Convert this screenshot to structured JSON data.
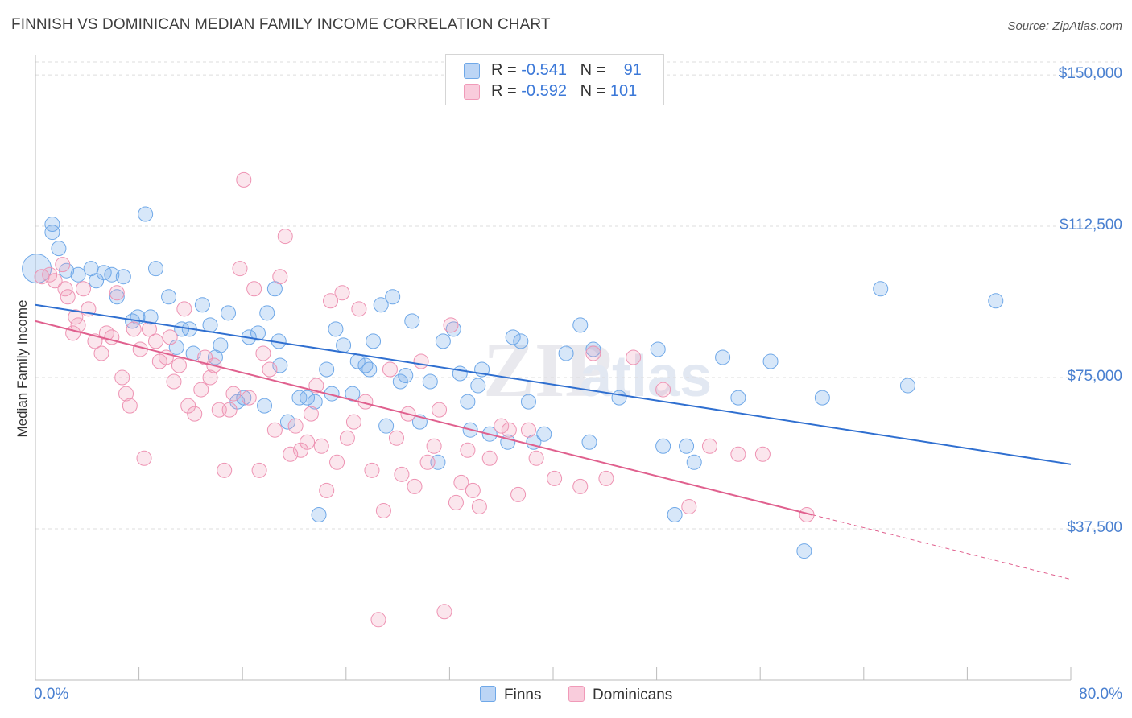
{
  "title": "FINNISH VS DOMINICAN MEDIAN FAMILY INCOME CORRELATION CHART",
  "source": "Source: ZipAtlas.com",
  "watermark": "ZIPatlas",
  "colors": {
    "finns": "#6fa8e8",
    "dominicans": "#f09ab8",
    "finns_line": "#2f6fd0",
    "dominicans_line": "#e0608e",
    "axis_text": "#4a80d0"
  },
  "legend": {
    "finns": {
      "r_label": "R =",
      "r_value": "-0.541",
      "n_label": "N =",
      "n_value": "91"
    },
    "dominicans": {
      "r_label": "R =",
      "r_value": "-0.592",
      "n_label": "N =",
      "n_value": "101"
    }
  },
  "bottom_legend": {
    "finns": "Finns",
    "dominicans": "Dominicans"
  },
  "chart_data": {
    "type": "scatter",
    "title": "FINNISH VS DOMINICAN MEDIAN FAMILY INCOME CORRELATION CHART",
    "xlabel": "",
    "ylabel": "Median Family Income",
    "xlim": [
      0,
      80
    ],
    "ylim": [
      0,
      155000
    ],
    "x_tick_labels": [
      "0.0%",
      "80.0%"
    ],
    "y_ticks": [
      37500,
      75000,
      112500,
      150000
    ],
    "y_tick_labels": [
      "$37,500",
      "$75,000",
      "$112,500",
      "$150,000"
    ],
    "grid": true,
    "series": [
      {
        "name": "Finns",
        "trend": {
          "x0": 0,
          "y0": 93000,
          "x1": 80,
          "y1": 53500
        },
        "points": [
          [
            0.1,
            102000
          ],
          [
            1.3,
            111000
          ],
          [
            1.3,
            113000
          ],
          [
            1.8,
            107000
          ],
          [
            2.4,
            101500
          ],
          [
            3.3,
            100500
          ],
          [
            4.3,
            102000
          ],
          [
            4.7,
            99000
          ],
          [
            5.3,
            101000
          ],
          [
            5.9,
            100500
          ],
          [
            6.3,
            95000
          ],
          [
            6.8,
            100000
          ],
          [
            7.5,
            89000
          ],
          [
            7.9,
            90000
          ],
          [
            8.5,
            115500
          ],
          [
            8.9,
            90000
          ],
          [
            9.3,
            102000
          ],
          [
            10.3,
            95000
          ],
          [
            10.9,
            82500
          ],
          [
            11.3,
            87000
          ],
          [
            11.9,
            87000
          ],
          [
            12.2,
            81000
          ],
          [
            12.9,
            93000
          ],
          [
            13.5,
            88000
          ],
          [
            13.9,
            80000
          ],
          [
            14.3,
            83000
          ],
          [
            14.9,
            91000
          ],
          [
            15.6,
            69000
          ],
          [
            16.1,
            70000
          ],
          [
            16.5,
            85000
          ],
          [
            17.2,
            86000
          ],
          [
            17.7,
            68000
          ],
          [
            17.9,
            91000
          ],
          [
            18.5,
            97000
          ],
          [
            18.8,
            84000
          ],
          [
            18.9,
            78000
          ],
          [
            19.5,
            64000
          ],
          [
            20.4,
            70000
          ],
          [
            21,
            70000
          ],
          [
            21.6,
            69000
          ],
          [
            21.9,
            41000
          ],
          [
            22.5,
            77000
          ],
          [
            22.9,
            71000
          ],
          [
            23.2,
            87000
          ],
          [
            23.8,
            83000
          ],
          [
            24.5,
            71000
          ],
          [
            24.9,
            79000
          ],
          [
            25.5,
            78000
          ],
          [
            25.8,
            77000
          ],
          [
            26.1,
            84000
          ],
          [
            26.7,
            93000
          ],
          [
            27.1,
            63000
          ],
          [
            27.6,
            95000
          ],
          [
            28.2,
            74000
          ],
          [
            28.6,
            75500
          ],
          [
            29.1,
            89000
          ],
          [
            29.7,
            64000
          ],
          [
            30.5,
            74000
          ],
          [
            31.1,
            54000
          ],
          [
            31.5,
            84000
          ],
          [
            32.3,
            87000
          ],
          [
            32.8,
            76000
          ],
          [
            33.4,
            69000
          ],
          [
            33.6,
            62000
          ],
          [
            34.2,
            73000
          ],
          [
            34.5,
            77000
          ],
          [
            35.1,
            61000
          ],
          [
            36.5,
            59000
          ],
          [
            36.9,
            85000
          ],
          [
            37.5,
            84000
          ],
          [
            38.1,
            69000
          ],
          [
            38.5,
            59000
          ],
          [
            39.3,
            61000
          ],
          [
            41,
            81000
          ],
          [
            42.1,
            88000
          ],
          [
            42.8,
            59000
          ],
          [
            43.1,
            82000
          ],
          [
            45.1,
            70000
          ],
          [
            48.1,
            82000
          ],
          [
            48.5,
            58000
          ],
          [
            49.4,
            41000
          ],
          [
            50.3,
            58000
          ],
          [
            50.9,
            54000
          ],
          [
            53.1,
            80000
          ],
          [
            54.3,
            70000
          ],
          [
            56.8,
            79000
          ],
          [
            59.4,
            32000
          ],
          [
            60.8,
            70000
          ],
          [
            65.3,
            97000
          ],
          [
            67.4,
            73000
          ],
          [
            74.2,
            94000
          ]
        ]
      },
      {
        "name": "Dominicans",
        "trend": {
          "x0": 0,
          "y0": 89000,
          "x1": 60,
          "y1": 41000,
          "dashed_to_x": 80,
          "dashed_to_y": 25000
        },
        "points": [
          [
            0.5,
            100000
          ],
          [
            1.1,
            100500
          ],
          [
            1.5,
            99000
          ],
          [
            2.1,
            103000
          ],
          [
            2.3,
            97000
          ],
          [
            2.5,
            95000
          ],
          [
            2.9,
            86000
          ],
          [
            3.1,
            90000
          ],
          [
            3.3,
            88000
          ],
          [
            3.7,
            97000
          ],
          [
            4.1,
            92000
          ],
          [
            4.6,
            84000
          ],
          [
            5.1,
            81000
          ],
          [
            5.5,
            86000
          ],
          [
            5.9,
            85000
          ],
          [
            6.3,
            96000
          ],
          [
            6.7,
            75000
          ],
          [
            7,
            71000
          ],
          [
            7.3,
            68000
          ],
          [
            7.6,
            87000
          ],
          [
            8.1,
            82000
          ],
          [
            8.4,
            55000
          ],
          [
            8.8,
            87000
          ],
          [
            9.3,
            84000
          ],
          [
            9.6,
            79000
          ],
          [
            10.1,
            80000
          ],
          [
            10.4,
            85000
          ],
          [
            10.7,
            74000
          ],
          [
            11.1,
            78000
          ],
          [
            11.5,
            92000
          ],
          [
            11.8,
            68000
          ],
          [
            12.3,
            66000
          ],
          [
            12.8,
            72000
          ],
          [
            13.1,
            80000
          ],
          [
            13.5,
            75000
          ],
          [
            13.8,
            78000
          ],
          [
            14.2,
            67000
          ],
          [
            14.6,
            52000
          ],
          [
            15,
            67000
          ],
          [
            15.3,
            71000
          ],
          [
            15.8,
            102000
          ],
          [
            16.1,
            124000
          ],
          [
            16.5,
            70000
          ],
          [
            16.9,
            97000
          ],
          [
            17.3,
            52000
          ],
          [
            17.6,
            81000
          ],
          [
            18.1,
            77000
          ],
          [
            18.5,
            62000
          ],
          [
            18.9,
            100000
          ],
          [
            19.3,
            110000
          ],
          [
            19.7,
            56000
          ],
          [
            20.1,
            63000
          ],
          [
            20.5,
            57000
          ],
          [
            21,
            59000
          ],
          [
            21.3,
            66000
          ],
          [
            21.7,
            73000
          ],
          [
            22.1,
            58000
          ],
          [
            22.5,
            47000
          ],
          [
            22.8,
            94000
          ],
          [
            23.3,
            54000
          ],
          [
            23.7,
            96000
          ],
          [
            24.1,
            60000
          ],
          [
            24.6,
            64000
          ],
          [
            25,
            92000
          ],
          [
            25.5,
            69000
          ],
          [
            26,
            52000
          ],
          [
            26.5,
            15000
          ],
          [
            26.9,
            42000
          ],
          [
            27.4,
            77000
          ],
          [
            27.9,
            60000
          ],
          [
            28.3,
            51000
          ],
          [
            28.8,
            66000
          ],
          [
            29.3,
            48000
          ],
          [
            29.8,
            79000
          ],
          [
            30.3,
            54000
          ],
          [
            30.8,
            58000
          ],
          [
            31.2,
            67000
          ],
          [
            31.6,
            17000
          ],
          [
            32.1,
            88000
          ],
          [
            32.5,
            44000
          ],
          [
            32.9,
            49000
          ],
          [
            33.4,
            57000
          ],
          [
            33.8,
            47000
          ],
          [
            34.3,
            43000
          ],
          [
            35.1,
            55000
          ],
          [
            36,
            63000
          ],
          [
            36.6,
            62000
          ],
          [
            37.3,
            46000
          ],
          [
            38.1,
            62000
          ],
          [
            38.7,
            55000
          ],
          [
            40.1,
            50000
          ],
          [
            42.1,
            48000
          ],
          [
            43.1,
            81000
          ],
          [
            44.1,
            50000
          ],
          [
            46.2,
            80000
          ],
          [
            48.5,
            72000
          ],
          [
            50.5,
            43000
          ],
          [
            52.1,
            58000
          ],
          [
            54.3,
            56000
          ],
          [
            56.2,
            56000
          ],
          [
            59.6,
            41000
          ]
        ]
      }
    ]
  }
}
